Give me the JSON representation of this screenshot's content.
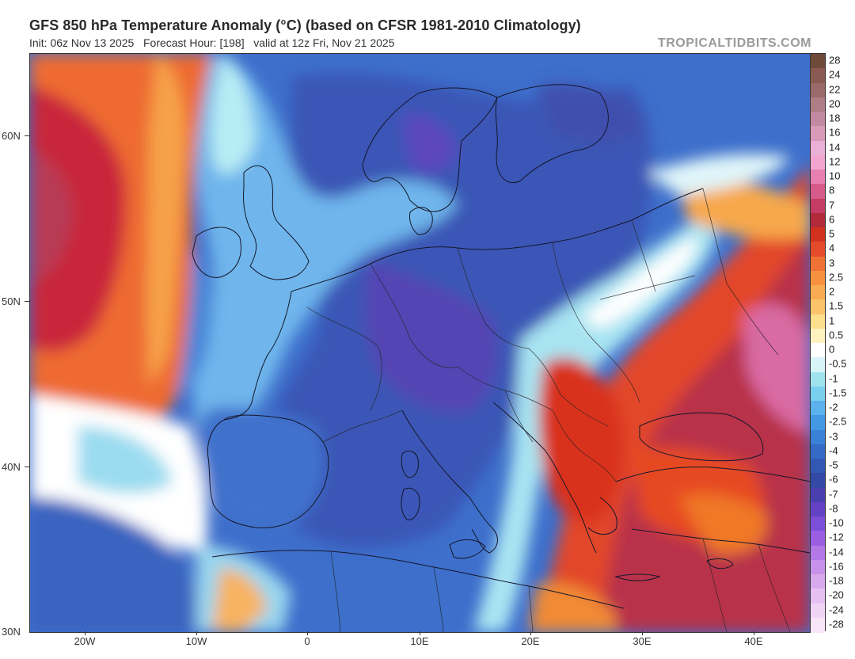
{
  "title": "GFS 850 hPa Temperature Anomaly (°C) (based on CFSR 1981-2010 Climatology)",
  "subtitle": "Init: 06z Nov 13 2025   Forecast Hour: [198]   valid at 12z Fri, Nov 21 2025",
  "brand": "TROPICALTIDBITS.COM",
  "lat_labels": [
    "60N",
    "50N",
    "40N",
    "30N"
  ],
  "lon_labels": [
    "20W",
    "10W",
    "0",
    "10E",
    "20E",
    "30E",
    "40E"
  ],
  "colorbar": [
    {
      "label": "28",
      "color": "#6e4a3a"
    },
    {
      "label": "24",
      "color": "#8a5a52"
    },
    {
      "label": "22",
      "color": "#9a6a6a"
    },
    {
      "label": "20",
      "color": "#b07c86"
    },
    {
      "label": "18",
      "color": "#c28aa0"
    },
    {
      "label": "16",
      "color": "#d89ab8"
    },
    {
      "label": "14",
      "color": "#eab0d6"
    },
    {
      "label": "12",
      "color": "#f2a6cf"
    },
    {
      "label": "10",
      "color": "#e77fb0"
    },
    {
      "label": "8",
      "color": "#d65a8a"
    },
    {
      "label": "7",
      "color": "#c43c63"
    },
    {
      "label": "6",
      "color": "#b02a3c"
    },
    {
      "label": "5",
      "color": "#d2311f"
    },
    {
      "label": "4",
      "color": "#e44b2a"
    },
    {
      "label": "3",
      "color": "#ef7136"
    },
    {
      "label": "2.5",
      "color": "#f5913f"
    },
    {
      "label": "2",
      "color": "#f8ab52"
    },
    {
      "label": "1.5",
      "color": "#fbc46c"
    },
    {
      "label": "1",
      "color": "#fde08e"
    },
    {
      "label": "0.5",
      "color": "#fff2c0"
    },
    {
      "label": "0",
      "color": "#ffffff"
    },
    {
      "label": "-0.5",
      "color": "#d7f4f8"
    },
    {
      "label": "-1",
      "color": "#9fe3ee"
    },
    {
      "label": "-1.5",
      "color": "#79cfee"
    },
    {
      "label": "-2",
      "color": "#5cb2ec"
    },
    {
      "label": "-2.5",
      "color": "#4598e4"
    },
    {
      "label": "-3",
      "color": "#3a80d6"
    },
    {
      "label": "-4",
      "color": "#356ac6"
    },
    {
      "label": "-5",
      "color": "#3258b4"
    },
    {
      "label": "-6",
      "color": "#3448a6"
    },
    {
      "label": "-7",
      "color": "#4a3fae"
    },
    {
      "label": "-8",
      "color": "#6442c6"
    },
    {
      "label": "-10",
      "color": "#7d4ed8"
    },
    {
      "label": "-12",
      "color": "#9a5ee2"
    },
    {
      "label": "-14",
      "color": "#b377e6"
    },
    {
      "label": "-16",
      "color": "#c891ea"
    },
    {
      "label": "-18",
      "color": "#d9a9ee"
    },
    {
      "label": "-20",
      "color": "#e7c0f2"
    },
    {
      "label": "-24",
      "color": "#f1d4f5"
    },
    {
      "label": "-28",
      "color": "#f8e6f8"
    }
  ]
}
